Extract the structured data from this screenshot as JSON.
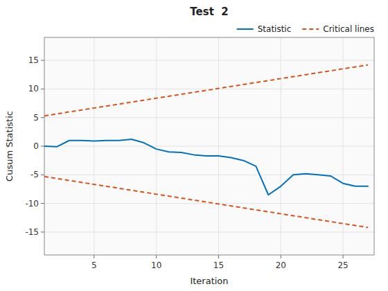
{
  "chart_data": {
    "type": "line",
    "title": "Test  2",
    "xlabel": "Iteration",
    "ylabel": "Cusum Statistic",
    "series": [
      {
        "name": "Statistic",
        "color": "#0072BD",
        "line_style": "solid",
        "x": [
          1,
          2,
          3,
          4,
          5,
          6,
          7,
          8,
          9,
          10,
          11,
          12,
          13,
          14,
          15,
          16,
          17,
          18,
          19,
          20,
          21,
          22,
          23,
          24,
          25,
          26,
          27
        ],
        "values": [
          0.0,
          -0.1,
          1.0,
          1.0,
          0.9,
          1.0,
          1.0,
          1.2,
          0.6,
          -0.5,
          -1.0,
          -1.1,
          -1.5,
          -1.7,
          -1.7,
          -2.0,
          -2.5,
          -3.5,
          -8.5,
          -7.0,
          -5.0,
          -4.8,
          -5.0,
          -5.2,
          -6.5,
          -7.0,
          -7.0
        ]
      },
      {
        "name": "Critical lines",
        "color": "#D95319",
        "line_style": "dashed",
        "x": [
          1,
          27
        ],
        "values": [
          5.3,
          14.2
        ]
      },
      {
        "color": "#D95319",
        "line_style": "dashed",
        "x": [
          1,
          27
        ],
        "values": [
          -5.3,
          -14.2
        ]
      }
    ],
    "xlim": [
      1,
      27.5
    ],
    "ylim": [
      -19,
      19
    ],
    "xticks": [
      5,
      10,
      15,
      20,
      25
    ],
    "yticks": [
      -15,
      -10,
      -5,
      0,
      5,
      10,
      15
    ],
    "grid": true,
    "legend": "upper right"
  }
}
